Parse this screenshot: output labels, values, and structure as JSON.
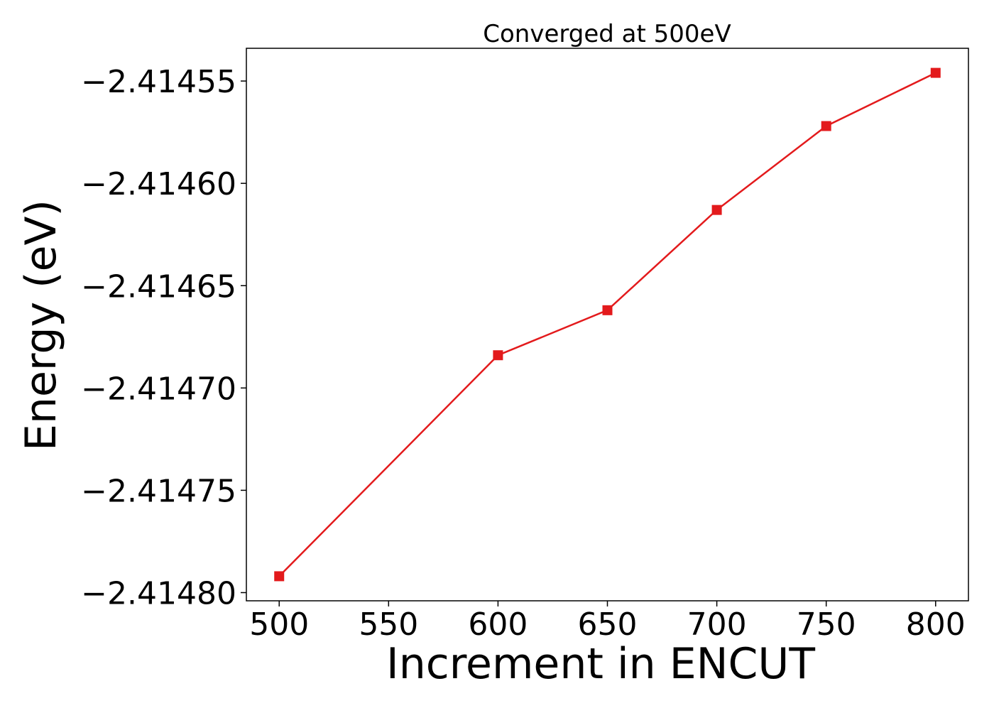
{
  "chart_data": {
    "type": "line",
    "title": "Converged at 500eV",
    "xlabel": "Increment in ENCUT",
    "ylabel": "Energy (eV)",
    "x": [
      500,
      600,
      650,
      700,
      750,
      800
    ],
    "series": [
      {
        "values": [
          -2.414792,
          -2.414684,
          -2.414662,
          -2.414613,
          -2.414572,
          -2.414546
        ],
        "color": "#e31a1c",
        "marker": "square"
      }
    ],
    "xticks": [
      500,
      550,
      600,
      650,
      700,
      750,
      800
    ],
    "xtick_labels": [
      "500",
      "550",
      "600",
      "650",
      "700",
      "750",
      "800"
    ],
    "yticks": [
      -2.4148,
      -2.41475,
      -2.4147,
      -2.41465,
      -2.4146,
      -2.41455
    ],
    "ytick_labels": [
      "−2.41480",
      "−2.41475",
      "−2.41470",
      "−2.41465",
      "−2.41460",
      "−2.41455"
    ],
    "xlim": [
      485,
      815
    ],
    "ylim": [
      -2.414804,
      -2.414534
    ],
    "grid": false,
    "legend": "none"
  }
}
